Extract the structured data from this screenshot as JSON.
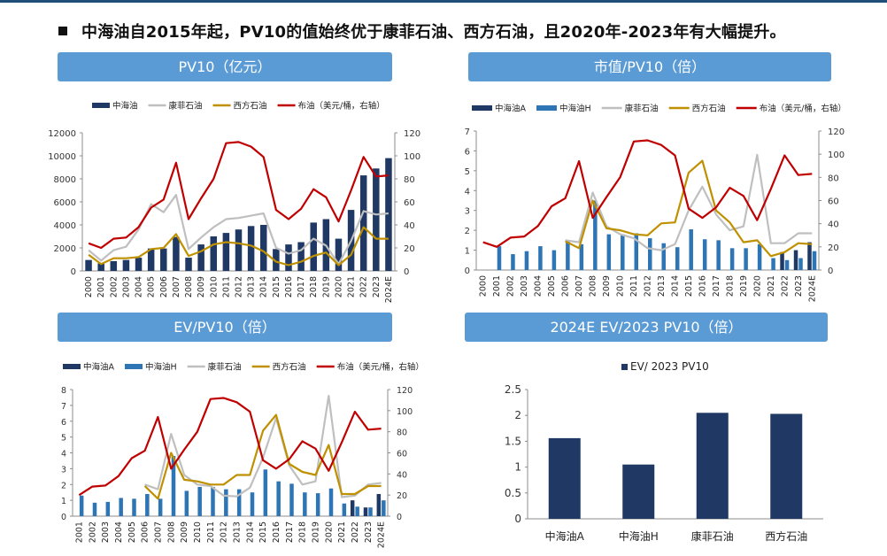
{
  "headline": "中海油自2015年起，PV10的值始终优于康菲石油、西方石油，且2020年-2023年有大幅提升。",
  "colors": {
    "cnooc_a": "#1F3864",
    "cnooc_h": "#2E75B6",
    "conoco": "#BFBFBF",
    "oxy": "#BF9000",
    "oil": "#C00000",
    "panel_title_bg": "#5B9BD5",
    "top_rule": "#1F4E79"
  },
  "panels": {
    "pv10": {
      "title": "PV10（亿元）"
    },
    "mcap": {
      "title": "市值/PV10（倍）"
    },
    "ev": {
      "title": "EV/PV10（倍）"
    },
    "ev2023": {
      "title": "2024E EV/2023 PV10（倍）"
    }
  },
  "chart_data": [
    {
      "type": "bar",
      "id": "pv10",
      "title": "PV10（亿元）",
      "categories": [
        "2000",
        "2001",
        "2002",
        "2003",
        "2004",
        "2005",
        "2006",
        "2007",
        "2008",
        "2009",
        "2010",
        "2011",
        "2012",
        "2013",
        "2014",
        "2015",
        "2016",
        "2017",
        "2018",
        "2019",
        "2020",
        "2021",
        "2022",
        "2023",
        "2024E"
      ],
      "ylim": [
        0,
        12000
      ],
      "yticks": [
        "0",
        "2000",
        "4000",
        "6000",
        "8000",
        "10000",
        "12000"
      ],
      "y2lim": [
        0,
        120
      ],
      "y2ticks": [
        "0",
        "20",
        "40",
        "60",
        "80",
        "100",
        "120"
      ],
      "series": [
        {
          "name": "中海油",
          "kind": "bar",
          "values": [
            950,
            650,
            850,
            950,
            1150,
            1950,
            1950,
            2950,
            1150,
            2300,
            3000,
            3300,
            3600,
            3900,
            4000,
            1900,
            2300,
            2500,
            4200,
            4500,
            2800,
            5300,
            8300,
            8900,
            9800
          ]
        },
        {
          "name": "康菲石油",
          "kind": "line",
          "axis": "right",
          "values": [
            18,
            9,
            18,
            21,
            36,
            58,
            51,
            66,
            19,
            29,
            38,
            45,
            46,
            48,
            50,
            20,
            15,
            18,
            28,
            22,
            6,
            26,
            52,
            49,
            50
          ]
        },
        {
          "name": "西方石油",
          "kind": "line",
          "axis": "right",
          "values": [
            14,
            6,
            11,
            11,
            12,
            19,
            20,
            32,
            13,
            17,
            23,
            25,
            24,
            22,
            17,
            8,
            5,
            8,
            13,
            16,
            5,
            14,
            38,
            28,
            28
          ]
        },
        {
          "name": "布油（美元/桶，右轴）",
          "kind": "line",
          "axis": "right",
          "values": [
            24,
            20,
            28,
            29,
            38,
            55,
            62,
            94,
            45,
            63,
            80,
            111,
            112,
            108,
            99,
            53,
            45,
            54,
            71,
            64,
            43,
            70,
            99,
            82,
            83
          ]
        }
      ]
    },
    {
      "type": "bar",
      "id": "mcap",
      "title": "市值/PV10（倍）",
      "categories": [
        "2000",
        "2001",
        "2002",
        "2003",
        "2004",
        "2005",
        "2006",
        "2007",
        "2008",
        "2009",
        "2010",
        "2011",
        "2012",
        "2013",
        "2014",
        "2015",
        "2016",
        "2017",
        "2018",
        "2019",
        "2020",
        "2021",
        "2022",
        "2023",
        "2024E"
      ],
      "ylim": [
        0,
        7
      ],
      "yticks": [
        "0",
        "1",
        "2",
        "3",
        "4",
        "5",
        "6",
        "7"
      ],
      "y2lim": [
        0,
        120
      ],
      "y2ticks": [
        "0",
        "20",
        "40",
        "60",
        "80",
        "100",
        "120"
      ],
      "series": [
        {
          "name": "中海油A",
          "kind": "bar",
          "values": [
            null,
            null,
            null,
            null,
            null,
            null,
            null,
            null,
            null,
            null,
            null,
            null,
            null,
            null,
            null,
            null,
            null,
            null,
            null,
            null,
            null,
            null,
            0.9,
            1.0,
            1.4
          ]
        },
        {
          "name": "中海油H",
          "kind": "bar",
          "values": [
            null,
            1.2,
            0.8,
            0.95,
            1.2,
            1.0,
            1.5,
            1.3,
            3.5,
            1.8,
            1.8,
            1.85,
            1.6,
            1.35,
            1.15,
            2.05,
            1.55,
            1.5,
            1.1,
            1.1,
            1.3,
            0.6,
            0.5,
            0.6,
            0.95
          ]
        },
        {
          "name": "康菲石油",
          "kind": "line",
          "values": [
            null,
            null,
            null,
            null,
            null,
            null,
            1.5,
            1.4,
            3.9,
            2.2,
            1.8,
            1.6,
            1.1,
            1.0,
            1.3,
            3.0,
            4.2,
            2.8,
            2.0,
            2.2,
            5.8,
            1.35,
            1.35,
            1.85,
            1.85
          ]
        },
        {
          "name": "西方石油",
          "kind": "line",
          "values": [
            null,
            null,
            null,
            null,
            null,
            null,
            1.45,
            1.1,
            3.5,
            2.1,
            2.0,
            1.8,
            1.75,
            2.35,
            2.4,
            4.9,
            5.5,
            3.0,
            2.4,
            1.4,
            1.5,
            0.7,
            0.9,
            1.35,
            1.3
          ]
        },
        {
          "name": "布油（美元/桶，右轴）",
          "kind": "line",
          "axis": "right",
          "values": [
            24,
            20,
            28,
            29,
            38,
            55,
            62,
            94,
            45,
            63,
            80,
            111,
            112,
            108,
            99,
            53,
            45,
            54,
            71,
            64,
            43,
            70,
            99,
            82,
            83
          ]
        }
      ]
    },
    {
      "type": "bar",
      "id": "ev",
      "title": "EV/PV10（倍）",
      "categories": [
        "2001",
        "2002",
        "2003",
        "2004",
        "2005",
        "2006",
        "2007",
        "2008",
        "2009",
        "2010",
        "2011",
        "2012",
        "2013",
        "2014",
        "2015",
        "2016",
        "2017",
        "2018",
        "2019",
        "2020",
        "2021",
        "2022",
        "2023",
        "2024E"
      ],
      "ylim": [
        0,
        8
      ],
      "yticks": [
        "0",
        "1",
        "2",
        "3",
        "4",
        "5",
        "6",
        "7",
        "8"
      ],
      "y2lim": [
        0,
        120
      ],
      "y2ticks": [
        "0",
        "20",
        "40",
        "60",
        "80",
        "100",
        "120"
      ],
      "series": [
        {
          "name": "中海油A",
          "kind": "bar",
          "values": [
            null,
            null,
            null,
            null,
            null,
            null,
            null,
            null,
            null,
            null,
            null,
            null,
            null,
            null,
            null,
            null,
            null,
            null,
            null,
            null,
            null,
            1.0,
            0.55,
            1.4
          ]
        },
        {
          "name": "中海油H",
          "kind": "bar",
          "values": [
            1.3,
            0.85,
            0.9,
            1.15,
            1.1,
            1.4,
            1.1,
            3.8,
            1.6,
            1.85,
            1.85,
            1.7,
            1.7,
            1.5,
            2.95,
            2.2,
            2.05,
            1.5,
            1.45,
            1.75,
            0.8,
            0.6,
            0.55,
            1.0
          ]
        },
        {
          "name": "康菲石油",
          "kind": "line",
          "values": [
            null,
            null,
            null,
            null,
            null,
            2.0,
            1.7,
            5.2,
            2.6,
            2.0,
            1.9,
            1.3,
            1.25,
            1.8,
            3.7,
            6.2,
            3.2,
            2.0,
            2.2,
            7.6,
            1.2,
            1.3,
            2.0,
            2.1
          ]
        },
        {
          "name": "西方石油",
          "kind": "line",
          "values": [
            null,
            null,
            null,
            null,
            null,
            1.9,
            1.1,
            4.0,
            2.3,
            2.2,
            2.0,
            2.0,
            2.6,
            2.6,
            5.4,
            6.4,
            3.3,
            2.8,
            2.6,
            4.5,
            1.4,
            1.4,
            1.9,
            1.9
          ]
        },
        {
          "name": "布油（美元/桶，右轴）",
          "kind": "line",
          "axis": "right",
          "values": [
            20,
            28,
            29,
            38,
            55,
            62,
            94,
            45,
            63,
            80,
            111,
            112,
            108,
            99,
            53,
            45,
            54,
            71,
            64,
            43,
            70,
            99,
            82,
            83
          ]
        }
      ]
    },
    {
      "type": "bar",
      "id": "ev2023",
      "title": "2024E EV/2023 PV10（倍）",
      "categories": [
        "中海油A",
        "中海油H",
        "康菲石油",
        "西方石油"
      ],
      "ylim": [
        0,
        2.5
      ],
      "yticks": [
        "0",
        "0.5",
        "1",
        "1.5",
        "2",
        "2.5"
      ],
      "series": [
        {
          "name": "EV/ 2023 PV10",
          "kind": "bar",
          "values": [
            1.56,
            1.05,
            2.05,
            2.03
          ]
        }
      ]
    }
  ]
}
